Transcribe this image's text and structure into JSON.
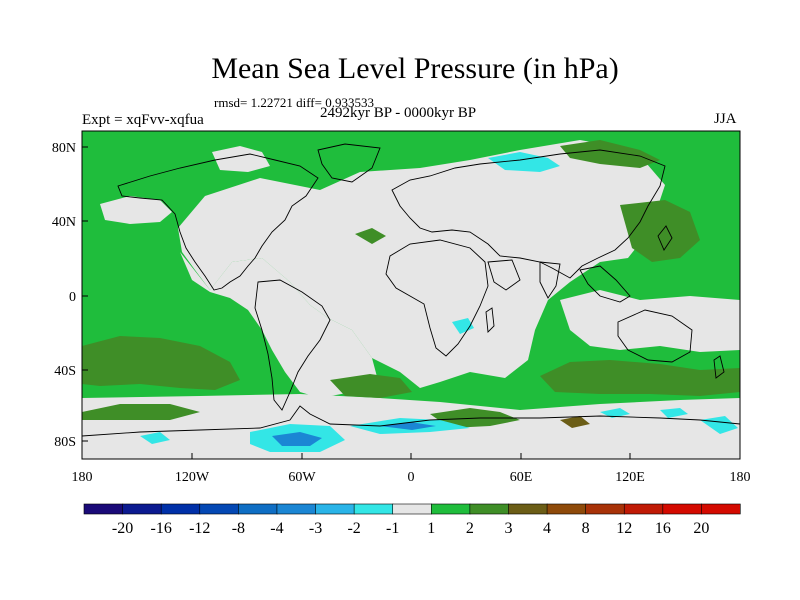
{
  "header": {
    "title": "Mean Sea Level Pressure (in hPa)",
    "stats": "rmsd= 1.22721 diff= 0.933533",
    "experiment": "Expt = xqFvv-xqfua",
    "period": "2492kyr BP - 0000kyr BP",
    "season": "JJA"
  },
  "map": {
    "y_ticks": [
      "80N",
      "40N",
      "0",
      "40S",
      "80S"
    ],
    "x_ticks": [
      "180",
      "120W",
      "60W",
      "0",
      "60E",
      "120E",
      "180"
    ],
    "colors": {
      "near_zero": "#e6e6e6",
      "plus_1_2": "#1fbd3c",
      "plus_2_3": "#3f8e27",
      "plus_3_4": "#6b5d16",
      "minus_1_2": "#33e6e6",
      "minus_2_3": "#2ab4e8",
      "minus_3_4": "#1b86d4",
      "coast": "#000000"
    }
  },
  "colorbar": {
    "labels": [
      "-20",
      "-16",
      "-12",
      "-8",
      "-4",
      "-3",
      "-2",
      "-1",
      "1",
      "2",
      "3",
      "4",
      "8",
      "12",
      "16",
      "20"
    ],
    "colors": [
      "#1a0a78",
      "#0c1a90",
      "#0030a8",
      "#0448b4",
      "#0f6ec4",
      "#1b86d4",
      "#2ab4e8",
      "#33e6e6",
      "#e6e6e6",
      "#1fbd3c",
      "#3f8e27",
      "#6b5d16",
      "#8e4a0a",
      "#a83208",
      "#c01a05",
      "#d40a00"
    ]
  }
}
